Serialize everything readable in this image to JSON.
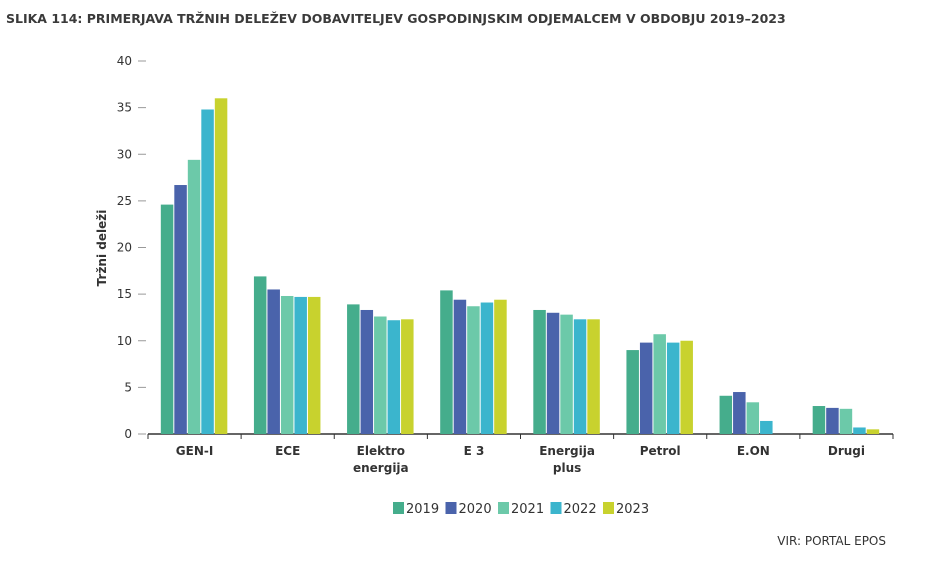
{
  "chart_data": {
    "type": "bar",
    "title": "SLIKA 114: PRIMERJAVA TRŽNIH DELEŽEV DOBAVITELJEV GOSPODINJSKIM ODJEMALCEM V OBDOBJU 2019–2023",
    "y_label": "Tržni deleži",
    "source": "VIR: PORTAL EPOS",
    "categories": [
      "GEN-I",
      "ECE",
      "Elektro\nenergija",
      "E 3",
      "Energija\nplus",
      "Petrol",
      "E.ON",
      "Drugi"
    ],
    "series": [
      {
        "name": "2019",
        "color": "#45ad8c",
        "values": [
          24.6,
          16.9,
          13.9,
          15.4,
          13.3,
          9.0,
          4.1,
          3.0
        ]
      },
      {
        "name": "2020",
        "color": "#4a63ab",
        "values": [
          26.7,
          15.5,
          13.3,
          14.4,
          13.0,
          9.8,
          4.5,
          2.8
        ]
      },
      {
        "name": "2021",
        "color": "#6cc9a9",
        "values": [
          29.4,
          14.8,
          12.6,
          13.7,
          12.8,
          10.7,
          3.4,
          2.7
        ]
      },
      {
        "name": "2022",
        "color": "#3bb5cd",
        "values": [
          34.8,
          14.7,
          12.2,
          14.1,
          12.3,
          9.8,
          1.4,
          0.7
        ]
      },
      {
        "name": "2023",
        "color": "#c8d22e",
        "values": [
          36.0,
          14.7,
          12.3,
          14.4,
          12.3,
          10.0,
          null,
          0.5
        ]
      }
    ],
    "ylim": [
      0,
      40
    ],
    "yticks": [
      0,
      5,
      10,
      15,
      20,
      25,
      30,
      35,
      40
    ],
    "grid": false,
    "legend": "bottom"
  }
}
